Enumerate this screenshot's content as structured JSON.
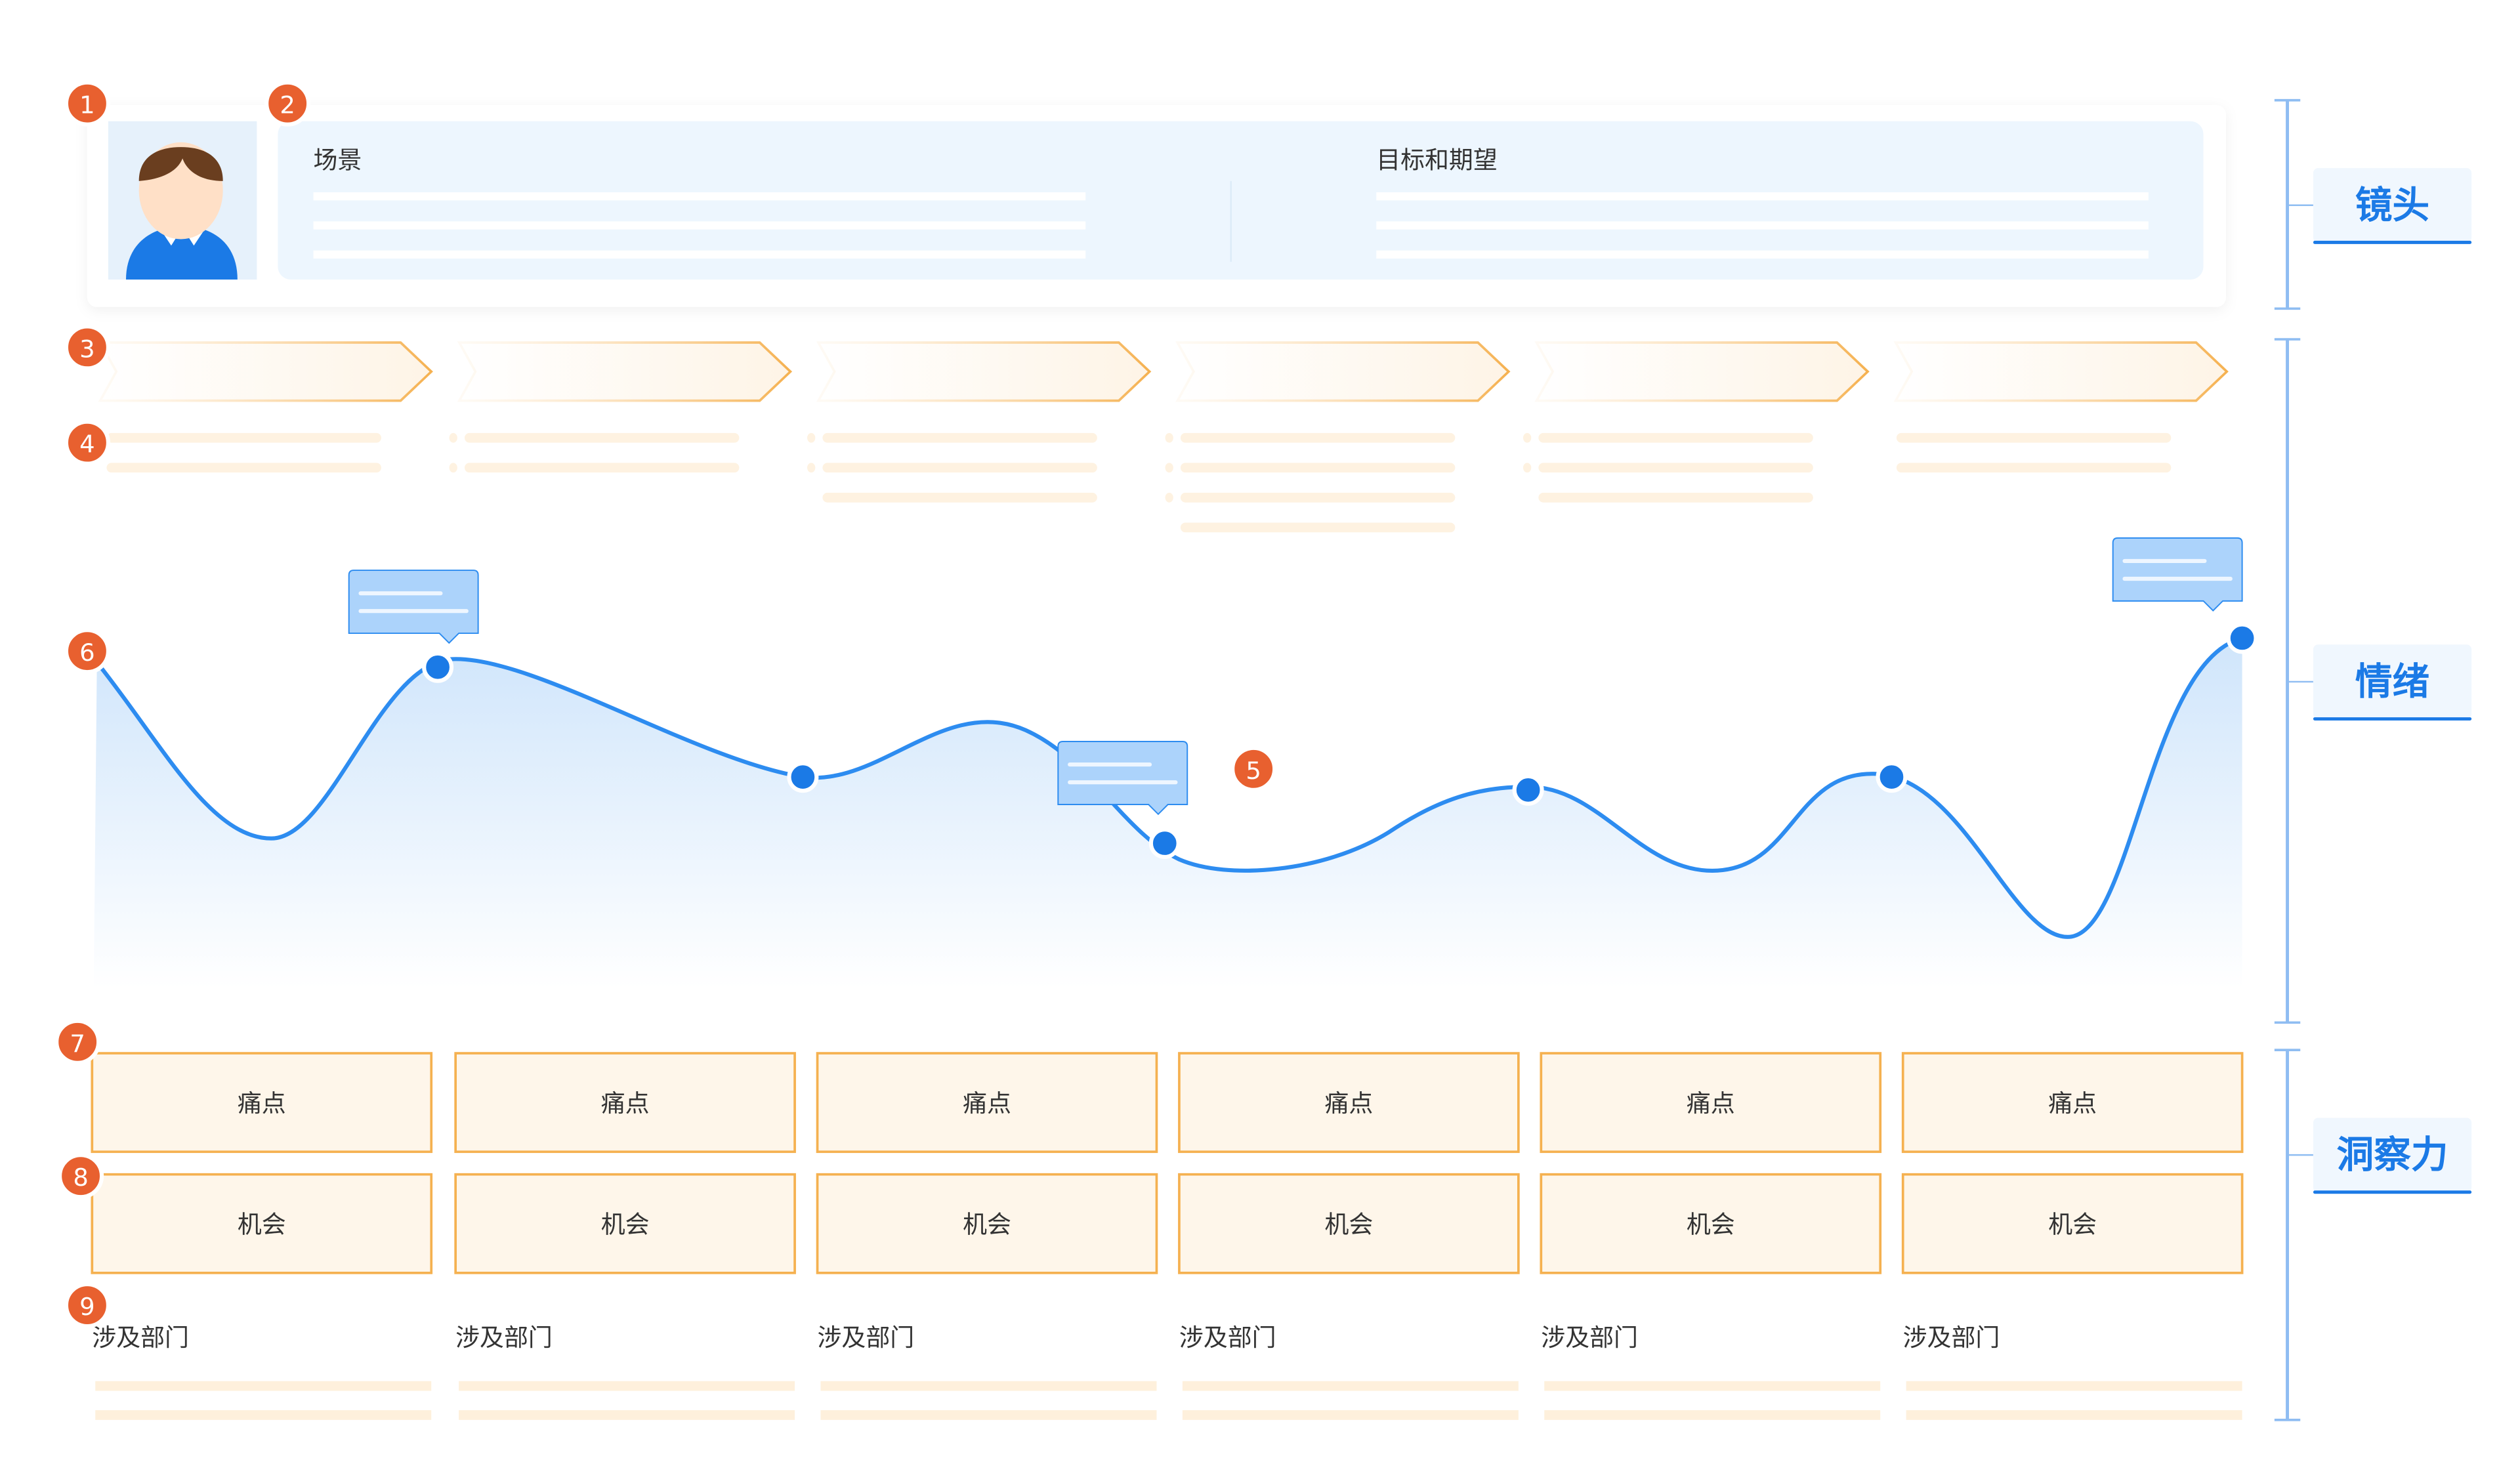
{
  "colors": {
    "badge": "#E8602F",
    "accent_blue": "#1B7AE6",
    "bracket": "#8FBDF2",
    "orange_stroke": "#F5B150",
    "orange_fill": "#FEF6EA",
    "panel_fill": "#EDF6FE"
  },
  "badges": [
    "1",
    "2",
    "3",
    "4",
    "5",
    "6",
    "7",
    "8",
    "9"
  ],
  "persona": {
    "icon": "user-avatar-icon"
  },
  "info_panel": {
    "scene_title": "场景",
    "goals_title": "目标和期望"
  },
  "stages": {
    "count_label": "6"
  },
  "insights": {
    "pain_points": [
      "痛点",
      "痛点",
      "痛点",
      "痛点",
      "痛点",
      "痛点"
    ],
    "opportunities": [
      "机会",
      "机会",
      "机会",
      "机会",
      "机会",
      "机会"
    ],
    "departments": [
      "涉及部门",
      "涉及部门",
      "涉及部门",
      "涉及部门",
      "涉及部门",
      "涉及部门"
    ]
  },
  "side_labels": [
    "镜头",
    "情绪",
    "洞察力"
  ]
}
